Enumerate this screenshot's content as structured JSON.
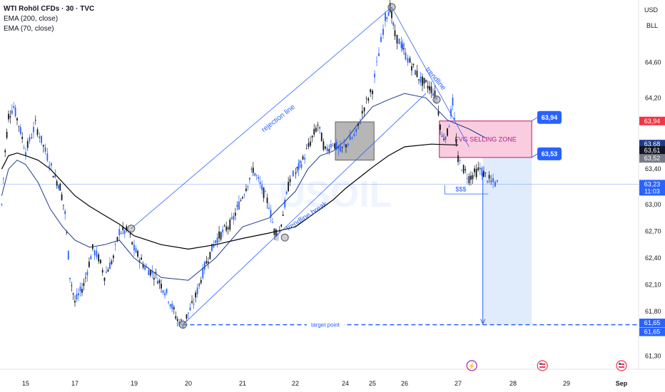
{
  "legend": {
    "title": "WTI Rohöl CFDs · 30 · TVC",
    "ema200": "EMA (200, close)",
    "ema70": "EMA (70, close)"
  },
  "currency": "USD",
  "unit": "BLL",
  "watermark": "USOIL",
  "colors": {
    "up": "#2962ff",
    "down": "#131722",
    "ema200": "#000000",
    "ema70": "#1e3a8a",
    "accent": "#2962ff",
    "zone_fill": "#f8c8dc",
    "zone_text": "#b0208a",
    "target_fill": "#dbe7fb"
  },
  "chart_data": {
    "type": "line",
    "ylim": [
      61.15,
      65.3
    ],
    "price_ticks": [
      "64,60",
      "64,20",
      "63,40",
      "63,00",
      "62,70",
      "62,40",
      "62,10",
      "61,80",
      "61,30"
    ],
    "date_ticks": [
      "15",
      "17",
      "19",
      "20",
      "21",
      "22",
      "24",
      "25",
      "26",
      "27",
      "28",
      "29",
      "Sep"
    ],
    "annotations": {
      "rejection_line": "rejection line",
      "trendline": "trendline",
      "trendline_break": "trendline break",
      "zone": "FVG SELLING ZONE",
      "sss": "$$$",
      "target": "target point"
    },
    "callouts": [
      {
        "label": "63,94",
        "value": 63.94
      },
      {
        "label": "63,53",
        "value": 63.53
      }
    ],
    "price_labels": [
      {
        "label": "63,94",
        "value": 63.94,
        "bg": "#f23645",
        "color": "#ffffff"
      },
      {
        "label": "63,68",
        "value": 63.68,
        "bg": "#1e3a8a",
        "color": "#ffffff"
      },
      {
        "label": "63,61",
        "value": 63.61,
        "bg": "#131722",
        "color": "#ffffff"
      },
      {
        "label": "63,52",
        "value": 63.52,
        "bg": "#787b86",
        "color": "#ffffff"
      },
      {
        "label": "63,23",
        "value": 63.23,
        "bg": "#2962ff",
        "color": "#ffffff",
        "sub": "11:03"
      },
      {
        "label": "61,65",
        "value": 61.67,
        "bg": "#2962ff",
        "color": "#ffffff"
      },
      {
        "label": "61,65",
        "value": 61.57,
        "bg": "#2962ff",
        "color": "#ffffff"
      }
    ],
    "levels": {
      "zone_top": 63.94,
      "zone_bottom": 63.53,
      "current": 63.23,
      "target": 61.65
    },
    "pivots": [
      {
        "date": "18.9",
        "price": 62.73
      },
      {
        "date": "19.9",
        "price": 61.65
      },
      {
        "date": "21.8",
        "price": 62.63
      },
      {
        "date": "25.6",
        "price": 65.22
      },
      {
        "date": "26.6",
        "price": 64.18
      }
    ],
    "price_path": [
      [
        13.6,
        63.0
      ],
      [
        13.8,
        63.6
      ],
      [
        14.0,
        64.0
      ],
      [
        14.3,
        64.1
      ],
      [
        14.6,
        63.9
      ],
      [
        15.0,
        63.6
      ],
      [
        15.4,
        63.9
      ],
      [
        15.8,
        63.6
      ],
      [
        16.2,
        63.3
      ],
      [
        16.4,
        63.2
      ],
      [
        16.6,
        62.9
      ],
      [
        16.8,
        62.2
      ],
      [
        17.0,
        61.9
      ],
      [
        17.3,
        62.1
      ],
      [
        17.6,
        62.5
      ],
      [
        17.8,
        62.4
      ],
      [
        18.0,
        62.2
      ],
      [
        18.3,
        62.4
      ],
      [
        18.5,
        62.7
      ],
      [
        18.8,
        62.7
      ],
      [
        19.0,
        62.5
      ],
      [
        19.2,
        62.3
      ],
      [
        19.4,
        62.2
      ],
      [
        19.6,
        62.0
      ],
      [
        19.8,
        61.7
      ],
      [
        19.9,
        61.66
      ],
      [
        20.1,
        61.9
      ],
      [
        20.3,
        62.3
      ],
      [
        20.5,
        62.6
      ],
      [
        20.8,
        62.8
      ],
      [
        21.0,
        63.1
      ],
      [
        21.2,
        63.4
      ],
      [
        21.5,
        63.0
      ],
      [
        21.6,
        62.7
      ],
      [
        21.7,
        62.7
      ],
      [
        21.9,
        63.3
      ],
      [
        22.3,
        63.5
      ],
      [
        22.6,
        63.7
      ],
      [
        22.9,
        63.9
      ],
      [
        23.2,
        63.6
      ],
      [
        23.5,
        63.7
      ],
      [
        23.8,
        63.6
      ],
      [
        24.1,
        63.7
      ],
      [
        24.4,
        63.8
      ],
      [
        24.7,
        64.1
      ],
      [
        25.0,
        64.3
      ],
      [
        25.2,
        64.7
      ],
      [
        25.4,
        65.1
      ],
      [
        25.55,
        65.22
      ],
      [
        25.7,
        64.9
      ],
      [
        25.9,
        64.8
      ],
      [
        26.1,
        64.6
      ],
      [
        26.3,
        64.4
      ],
      [
        26.5,
        64.3
      ],
      [
        26.6,
        64.2
      ],
      [
        26.7,
        63.75
      ],
      [
        26.8,
        63.8
      ],
      [
        26.9,
        64.15
      ],
      [
        27.0,
        63.5
      ],
      [
        27.2,
        63.3
      ],
      [
        27.4,
        63.4
      ],
      [
        27.6,
        63.25
      ],
      [
        27.75,
        63.23
      ]
    ],
    "ema200_path": [
      [
        13.6,
        63.4
      ],
      [
        14.0,
        63.55
      ],
      [
        14.5,
        63.58
      ],
      [
        15.0,
        63.55
      ],
      [
        15.5,
        63.5
      ],
      [
        16.0,
        63.4
      ],
      [
        16.5,
        63.25
      ],
      [
        17.0,
        63.1
      ],
      [
        17.5,
        62.98
      ],
      [
        18.0,
        62.88
      ],
      [
        18.5,
        62.78
      ],
      [
        19.0,
        62.65
      ],
      [
        19.5,
        62.55
      ],
      [
        20.0,
        62.5
      ],
      [
        20.5,
        62.55
      ],
      [
        21.0,
        62.62
      ],
      [
        21.5,
        62.68
      ],
      [
        22.0,
        62.75
      ],
      [
        22.5,
        62.85
      ],
      [
        23.0,
        62.95
      ],
      [
        23.5,
        63.05
      ],
      [
        24.0,
        63.18
      ],
      [
        24.5,
        63.3
      ],
      [
        25.0,
        63.42
      ],
      [
        25.5,
        63.55
      ],
      [
        26.0,
        63.65
      ],
      [
        26.5,
        63.68
      ],
      [
        27.0,
        63.67
      ]
    ],
    "ema70_path": [
      [
        13.6,
        63.1
      ],
      [
        14.0,
        63.4
      ],
      [
        14.5,
        63.5
      ],
      [
        15.0,
        63.45
      ],
      [
        15.5,
        63.25
      ],
      [
        16.0,
        62.95
      ],
      [
        16.5,
        62.75
      ],
      [
        17.0,
        62.6
      ],
      [
        17.5,
        62.52
      ],
      [
        18.0,
        62.55
      ],
      [
        18.5,
        62.6
      ],
      [
        19.0,
        62.4
      ],
      [
        19.5,
        62.18
      ],
      [
        20.0,
        62.15
      ],
      [
        20.5,
        62.4
      ],
      [
        21.0,
        62.75
      ],
      [
        21.5,
        62.85
      ],
      [
        22.0,
        63.15
      ],
      [
        22.5,
        63.4
      ],
      [
        23.0,
        63.55
      ],
      [
        23.5,
        63.6
      ],
      [
        24.0,
        63.72
      ],
      [
        24.5,
        63.92
      ],
      [
        25.0,
        64.1
      ],
      [
        25.5,
        64.18
      ],
      [
        26.0,
        64.25
      ],
      [
        26.4,
        64.2
      ],
      [
        26.8,
        63.95
      ],
      [
        27.2,
        63.85
      ],
      [
        27.5,
        63.75
      ]
    ]
  }
}
